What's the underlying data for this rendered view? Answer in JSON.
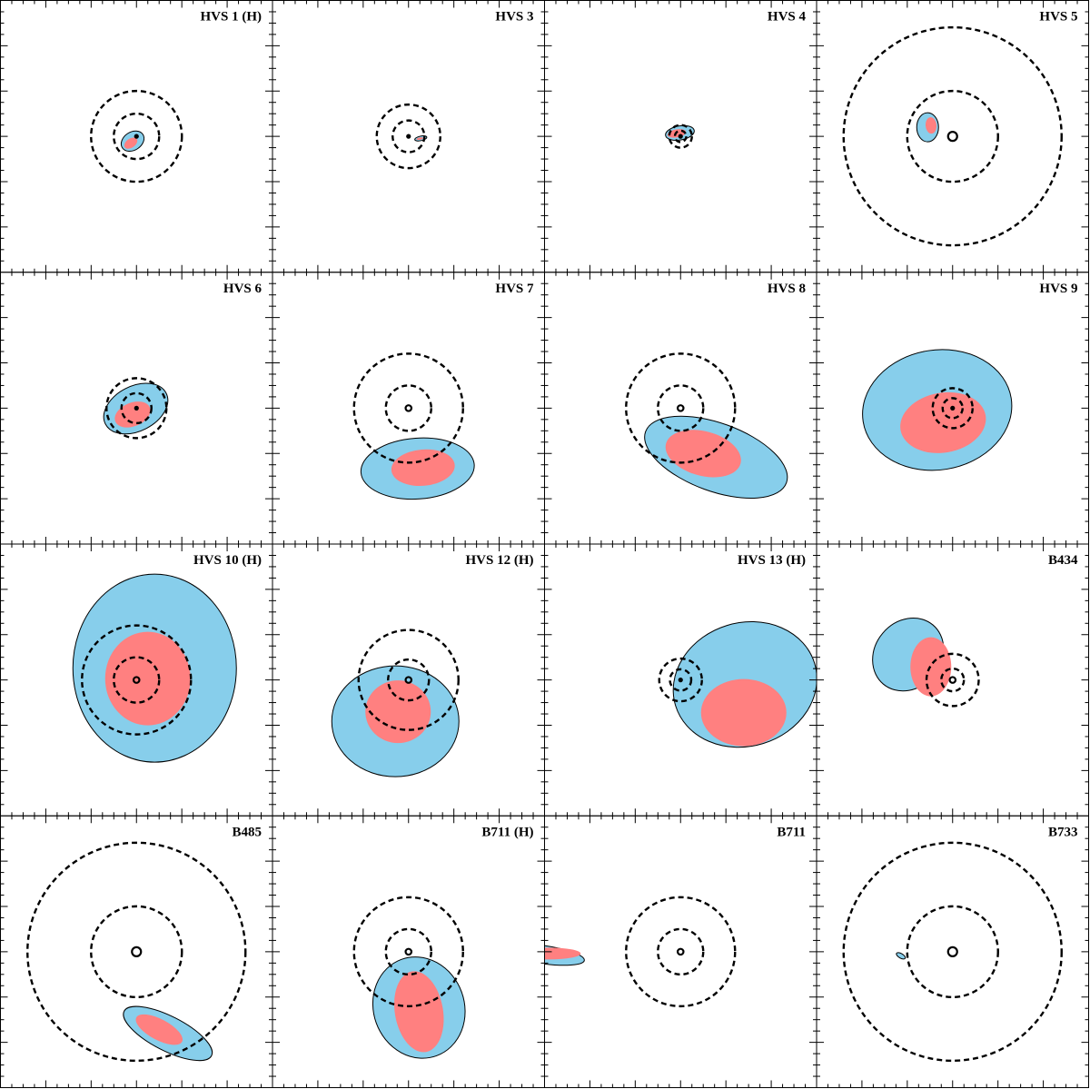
{
  "chart_data": {
    "type": "scatter",
    "grid": "4x4 panels",
    "colors": {
      "outer": "#87ceeb",
      "inner": "#ff8080",
      "marker": "#000000"
    },
    "panels": [
      {
        "title": "HVS 1 (H)",
        "rings": [
          1,
          2
        ],
        "marker": "dot",
        "outer": {
          "cx": -0.17,
          "cy": -0.21,
          "rx": 0.54,
          "ry": 0.4,
          "angle": -33
        },
        "inner": {
          "cx": -0.25,
          "cy": -0.3,
          "rx": 0.32,
          "ry": 0.2,
          "angle": -35
        }
      },
      {
        "title": "HVS 3",
        "rings": [
          0.7,
          1.4
        ],
        "marker": "dot",
        "outer": {
          "cx": 0.54,
          "cy": -0.09,
          "rx": 0.27,
          "ry": 0.1,
          "angle": -12
        },
        "inner": {
          "cx": 0.5,
          "cy": -0.1,
          "rx": 0.15,
          "ry": 0.05,
          "angle": -10
        }
      },
      {
        "title": "HVS 4",
        "rings": [
          0.25,
          0.5
        ],
        "marker": "dot",
        "outer": {
          "cx": -0.03,
          "cy": 0.15,
          "rx": 0.64,
          "ry": 0.31,
          "angle": -10
        },
        "inner": {
          "cx": -0.17,
          "cy": 0.13,
          "rx": 0.41,
          "ry": 0.18,
          "angle": -10
        }
      },
      {
        "title": "HVS 5",
        "rings": [
          2,
          4.8
        ],
        "marker": "ring",
        "outer": {
          "cx": -1.1,
          "cy": 0.4,
          "rx": 0.48,
          "ry": 0.64,
          "angle": 0
        },
        "inner": {
          "cx": -0.95,
          "cy": 0.48,
          "rx": 0.24,
          "ry": 0.36,
          "angle": -5
        }
      },
      {
        "title": "HVS 6",
        "rings": [
          0.66,
          1.32
        ],
        "marker": "dot",
        "outer": {
          "cx": -0.03,
          "cy": -0.02,
          "rx": 1.5,
          "ry": 0.99,
          "angle": -27
        },
        "inner": {
          "cx": -0.17,
          "cy": -0.28,
          "rx": 0.82,
          "ry": 0.52,
          "angle": -22
        }
      },
      {
        "title": "HVS 7",
        "rings": [
          1,
          2.4
        ],
        "marker": "ring",
        "outer": {
          "cx": 0.4,
          "cy": -2.66,
          "rx": 2.5,
          "ry": 1.34,
          "angle": -4
        },
        "inner": {
          "cx": 0.64,
          "cy": -2.62,
          "rx": 1.4,
          "ry": 0.8,
          "angle": -5
        }
      },
      {
        "title": "HVS 8",
        "rings": [
          1,
          2.4
        ],
        "marker": "ring",
        "outer": {
          "cx": 1.56,
          "cy": -2.16,
          "rx": 3.3,
          "ry": 1.5,
          "angle": 20
        },
        "inner": {
          "cx": 1.0,
          "cy": -2.0,
          "rx": 1.7,
          "ry": 0.98,
          "angle": 15
        }
      },
      {
        "title": "HVS 9",
        "rings": [
          0.44,
          0.88
        ],
        "marker": "dot",
        "outer": {
          "cx": -0.68,
          "cy": -0.08,
          "rx": 3.3,
          "ry": 2.64,
          "angle": -9
        },
        "inner": {
          "cx": -0.42,
          "cy": -0.64,
          "rx": 1.9,
          "ry": 1.32,
          "angle": -10
        }
      },
      {
        "title": "HVS 10 (H)",
        "rings": [
          1,
          2.4
        ],
        "marker": "ring",
        "outer": {
          "cx": 0.8,
          "cy": 0.52,
          "rx": 3.6,
          "ry": 4.14,
          "angle": 0
        },
        "inner": {
          "cx": 0.5,
          "cy": 0.06,
          "rx": 1.88,
          "ry": 2.06,
          "angle": 0
        }
      },
      {
        "title": "HVS 12 (H)",
        "rings": [
          0.9,
          2.2
        ],
        "marker": "ring",
        "outer": {
          "cx": -0.58,
          "cy": -1.82,
          "rx": 2.8,
          "ry": 2.44,
          "angle": 0
        },
        "inner": {
          "cx": -0.46,
          "cy": -1.4,
          "rx": 1.44,
          "ry": 1.38,
          "angle": 0
        }
      },
      {
        "title": "HVS 13 (H)",
        "rings": [
          0.47,
          0.94
        ],
        "marker": "dot",
        "outer": {
          "cx": 2.84,
          "cy": -0.2,
          "rx": 3.2,
          "ry": 2.72,
          "angle": -17
        },
        "inner": {
          "cx": 2.78,
          "cy": -1.44,
          "rx": 1.88,
          "ry": 1.48,
          "angle": 0
        }
      },
      {
        "title": "B434",
        "rings": [
          0.5,
          1.15
        ],
        "marker": "ring",
        "outer": {
          "cx": -1.96,
          "cy": 1.12,
          "rx": 1.7,
          "ry": 1.46,
          "angle": -50
        },
        "inner": {
          "cx": -0.96,
          "cy": 0.58,
          "rx": 0.9,
          "ry": 1.3,
          "angle": 0
        }
      },
      {
        "title": "B485",
        "rings": [
          2,
          4.8
        ],
        "marker": "ring",
        "outer": {
          "cx": 1.38,
          "cy": -3.6,
          "rx": 2.16,
          "ry": 0.76,
          "angle": 27
        },
        "inner": {
          "cx": 1.0,
          "cy": -3.43,
          "rx": 1.14,
          "ry": 0.46,
          "angle": 28
        }
      },
      {
        "title": "B711 (H)",
        "rings": [
          1,
          2.4
        ],
        "marker": "ring",
        "outer": {
          "cx": 0.46,
          "cy": -2.46,
          "rx": 2.0,
          "ry": 2.26,
          "angle": -20
        },
        "inner": {
          "cx": 0.46,
          "cy": -2.64,
          "rx": 1.06,
          "ry": 1.8,
          "angle": -10
        }
      },
      {
        "title": "B711",
        "rings": [
          1,
          2.4
        ],
        "marker": "ring",
        "outer": {
          "cx": -6.1,
          "cy": -0.12,
          "rx": 1.88,
          "ry": 0.4,
          "angle": 8
        },
        "inner": {
          "cx": -5.8,
          "cy": -0.08,
          "rx": 1.4,
          "ry": 0.26,
          "angle": 0
        }
      },
      {
        "title": "B733",
        "rings": [
          2,
          4.8
        ],
        "marker": "ring",
        "outer": {
          "cx": -2.28,
          "cy": -0.18,
          "rx": 0.22,
          "ry": 0.1,
          "angle": 30
        },
        "inner": null
      }
    ]
  }
}
